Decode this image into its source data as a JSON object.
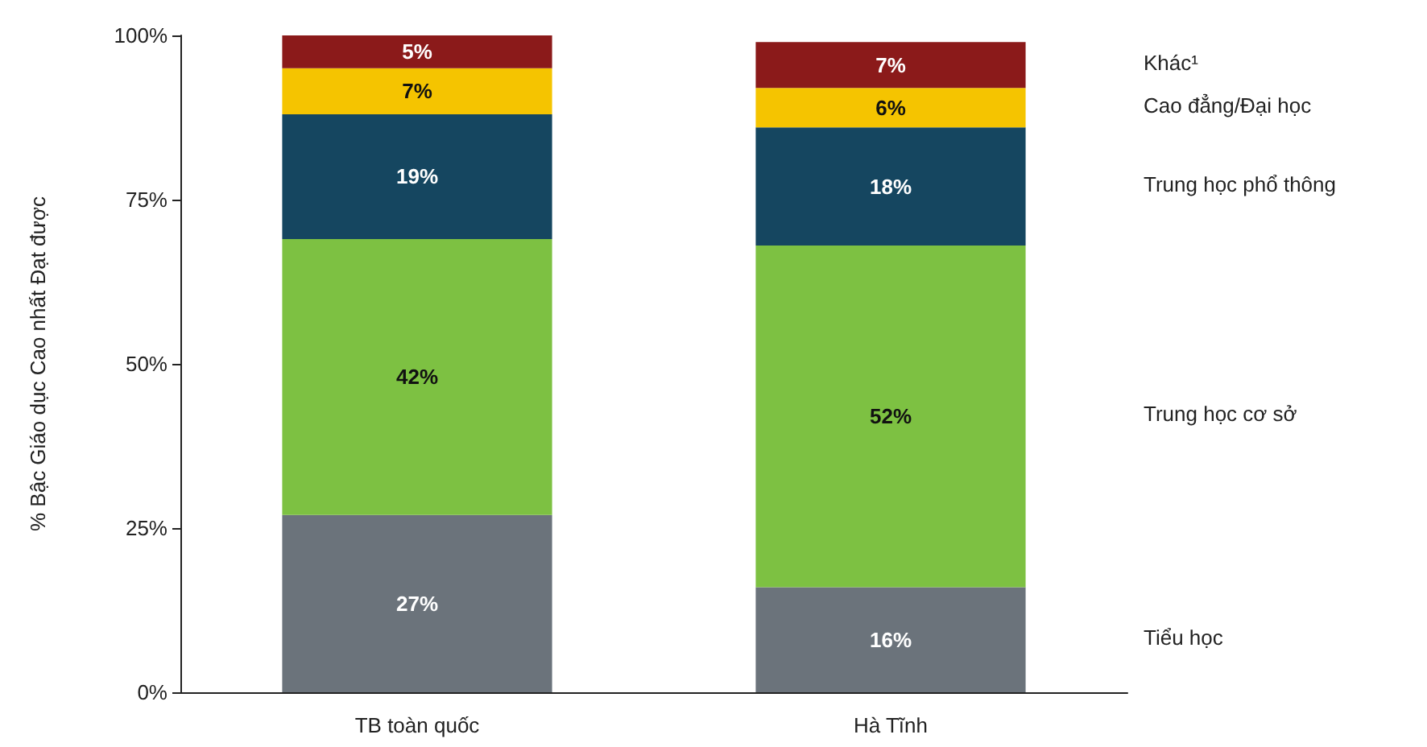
{
  "chart_data": {
    "type": "bar",
    "stacked": true,
    "ylabel": "% Bậc Giáo dục Cao nhất Đạt được",
    "categories": [
      "TB toàn quốc",
      "Hà Tĩnh"
    ],
    "series": [
      {
        "name": "Tiểu học",
        "color": "#6b737b",
        "values": [
          27,
          16
        ],
        "value_labels": [
          "27%",
          "16%"
        ]
      },
      {
        "name": "Trung học cơ sở",
        "color": "#7dc142",
        "values": [
          42,
          52
        ],
        "value_labels": [
          "42%",
          "52%"
        ]
      },
      {
        "name": "Trung học phổ thông",
        "color": "#154660",
        "values": [
          19,
          18
        ],
        "value_labels": [
          "19%",
          "18%"
        ]
      },
      {
        "name": "Cao đẳng/Đại học",
        "color": "#f5c400",
        "values": [
          7,
          6
        ],
        "value_labels": [
          "7%",
          "6%"
        ]
      },
      {
        "name": "Khác¹",
        "color": "#8b1a1a",
        "values": [
          5,
          7
        ],
        "value_labels": [
          "5%",
          "7%"
        ]
      }
    ],
    "ylim": [
      0,
      100
    ],
    "yticks": [
      {
        "value": 0,
        "label": "0%"
      },
      {
        "value": 25,
        "label": "25%"
      },
      {
        "value": 50,
        "label": "50%"
      },
      {
        "value": 75,
        "label": "75%"
      },
      {
        "value": 100,
        "label": "100%"
      }
    ],
    "grid": false,
    "legend": "right"
  }
}
